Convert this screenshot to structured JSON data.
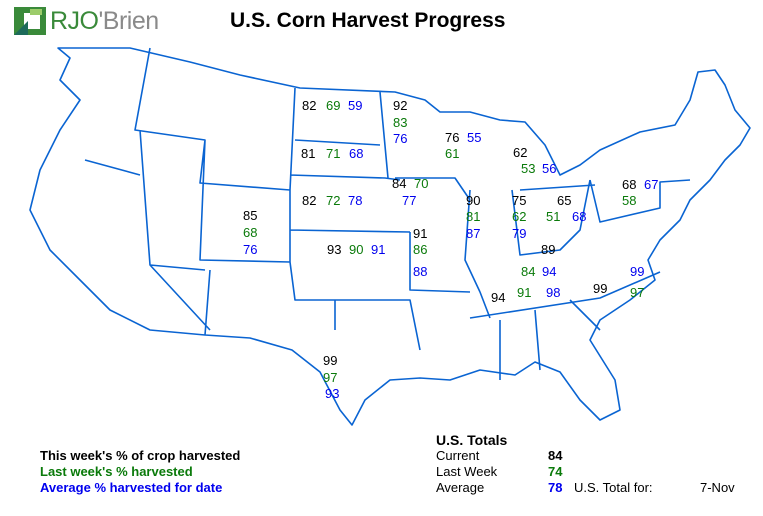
{
  "title": "U.S. Corn Harvest Progress",
  "logo": {
    "brand": "RJO'Brien",
    "colors": {
      "green": "#3a8a3a",
      "gray": "#8a8a8a"
    }
  },
  "colors": {
    "current": "#000000",
    "last_week": "#0a7a0a",
    "average": "#0000ee",
    "border": "#0a64d2"
  },
  "states": {
    "ND": {
      "current": "82",
      "last_week": "69",
      "average": "59"
    },
    "MN": {
      "current": "92",
      "last_week": "83",
      "average": "76"
    },
    "SD": {
      "current": "81",
      "last_week": "71",
      "average": "68"
    },
    "WI": {
      "current": "76",
      "last_week": "61",
      "average": "55"
    },
    "MI": {
      "current": "62",
      "last_week": "53",
      "average": "56"
    },
    "NE": {
      "current": "82",
      "last_week": "72",
      "average": "78"
    },
    "IA": {
      "current": "84",
      "last_week": "70",
      "average": "77"
    },
    "IL": {
      "current": "90",
      "last_week": "81",
      "average": "87"
    },
    "IN": {
      "current": "75",
      "last_week": "62",
      "average": "79"
    },
    "OH": {
      "current": "65",
      "last_week": "51",
      "average": "68"
    },
    "PA": {
      "current": "68",
      "last_week": "58",
      "average": "67"
    },
    "CO": {
      "current": "85",
      "last_week": "68",
      "average": "76"
    },
    "KS": {
      "current": "93",
      "last_week": "90",
      "average": "91"
    },
    "MO": {
      "current": "91",
      "last_week": "86",
      "average": "88"
    },
    "KY": {
      "current": "89",
      "last_week": "84",
      "average": "94"
    },
    "TN": {
      "current": "94",
      "last_week": "91",
      "average": "98"
    },
    "NC": {
      "current": "99",
      "last_week": "97",
      "average": "99"
    },
    "TX": {
      "current": "99",
      "last_week": "97",
      "average": "93"
    }
  },
  "legend": {
    "current": "This week's % of crop harvested",
    "last_week": "Last week's % harvested",
    "average": "Average % harvested for date"
  },
  "totals": {
    "heading": "U.S. Totals",
    "current_label": "Current",
    "current": "84",
    "last_week_label": "Last Week",
    "last_week": "74",
    "average_label": "Average",
    "average": "78",
    "total_for_label": "U.S. Total for:",
    "date": "7-Nov"
  }
}
